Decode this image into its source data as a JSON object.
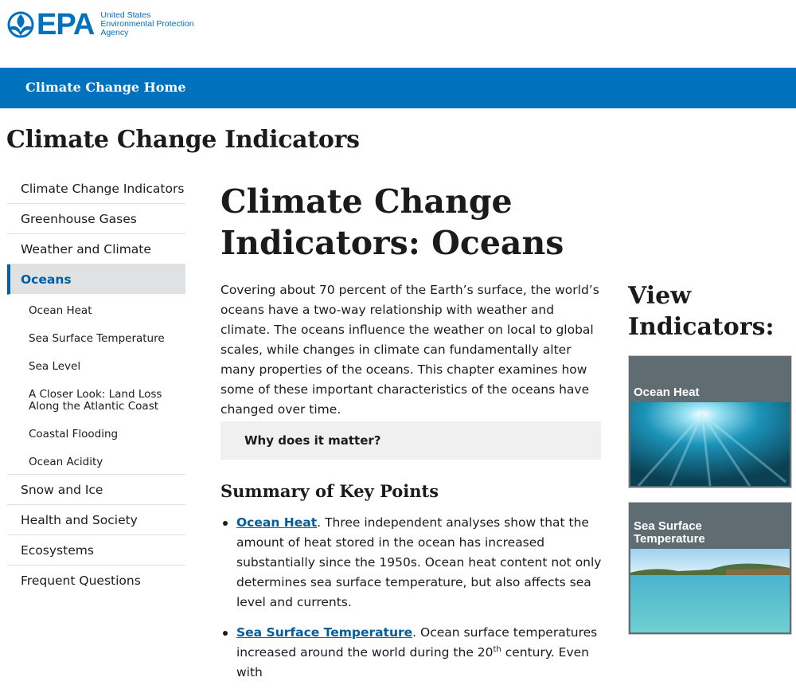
{
  "header": {
    "logo_word": "EPA",
    "agency_line1": "United States",
    "agency_line2": "Environmental Protection",
    "agency_line3": "Agency",
    "nav_home": "Climate Change Home",
    "site_title": "Climate Change Indicators"
  },
  "sidenav": {
    "items": [
      "Climate Change Indicators",
      "Greenhouse Gases",
      "Weather and Climate",
      "Oceans",
      "Snow and Ice",
      "Health and Society",
      "Ecosystems",
      "Frequent Questions"
    ],
    "subitems": [
      "Ocean Heat",
      "Sea Surface Temperature",
      "Sea Level",
      "A Closer Look: Land Loss Along the Atlantic Coast",
      "Coastal Flooding",
      "Ocean Acidity"
    ]
  },
  "main": {
    "title": "Climate Change Indicators: Oceans",
    "intro": "Covering about 70 percent of the Earth’s surface, the world’s oceans have a two-way relationship with weather and climate. The oceans influence the weather on local to global scales, while changes in climate can fundamentally alter many properties of the oceans. This chapter examines how some of these important characteristics of the oceans have changed over time.",
    "accordion_label": "Why does it matter?",
    "summary_heading": "Summary of Key Points",
    "key_points": [
      {
        "link": "Ocean Heat",
        "text": " Three independent analyses show that the amount of heat stored in the ocean has increased substantially since the 1950s. Ocean heat content not only determines sea surface temperature, but also affects sea level and currents."
      },
      {
        "link": "Sea Surface Temperature",
        "text_before_sup": " Ocean surface temperatures increased around the world during the 20",
        "sup": "th",
        "text_after_sup": " century. Even with"
      }
    ]
  },
  "sidebar": {
    "heading": "View Indicators:",
    "cards": [
      "Ocean Heat",
      "Sea Surface Temperature"
    ]
  },
  "colors": {
    "brand_blue": "#0071bc",
    "link_blue": "#005ea2",
    "card_gray": "#5f6c72"
  }
}
